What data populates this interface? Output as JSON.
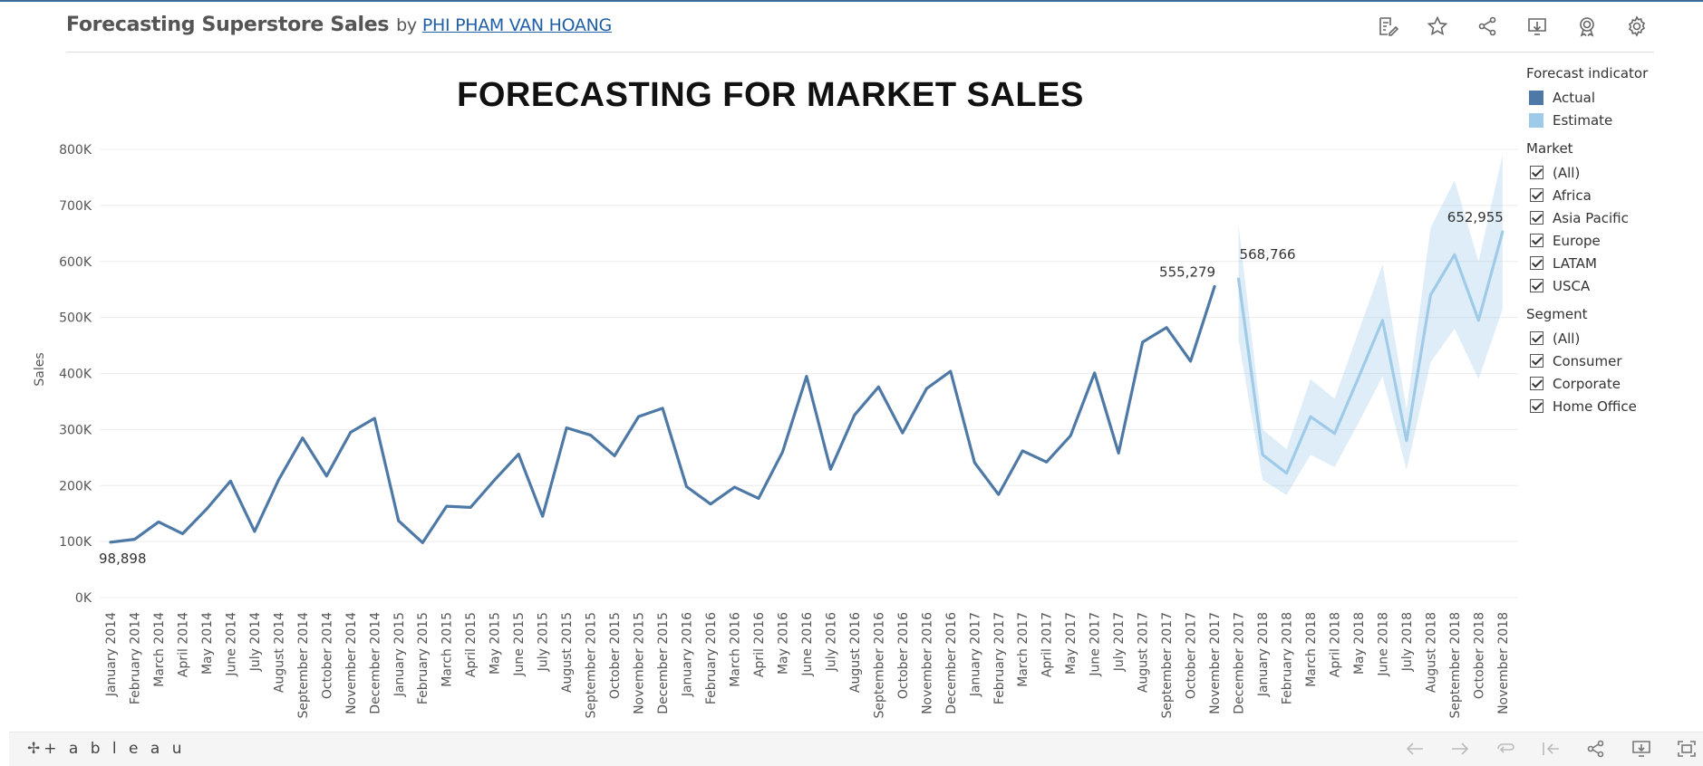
{
  "header": {
    "title": "Forecasting Superstore Sales",
    "by": "by",
    "author": "PHI PHAM VAN HOANG",
    "icons": [
      "edit-icon",
      "star-icon",
      "share-icon",
      "download-icon",
      "badge-icon",
      "settings-icon"
    ]
  },
  "chart_data": {
    "type": "line",
    "title": "FORECASTING FOR MARKET SALES",
    "ylabel": "Sales",
    "xlabel": "",
    "ylim": [
      0,
      800000
    ],
    "y_ticks": [
      "0K",
      "100K",
      "200K",
      "300K",
      "400K",
      "500K",
      "600K",
      "700K",
      "800K"
    ],
    "y_tick_values": [
      0,
      100000,
      200000,
      300000,
      400000,
      500000,
      600000,
      700000,
      800000
    ],
    "grid": true,
    "categories": [
      "January 2014",
      "February 2014",
      "March 2014",
      "April 2014",
      "May 2014",
      "June 2014",
      "July 2014",
      "August 2014",
      "September 2014",
      "October 2014",
      "November 2014",
      "December 2014",
      "January 2015",
      "February 2015",
      "March 2015",
      "April 2015",
      "May 2015",
      "June 2015",
      "July 2015",
      "August 2015",
      "September 2015",
      "October 2015",
      "November 2015",
      "December 2015",
      "January 2016",
      "February 2016",
      "March 2016",
      "April 2016",
      "May 2016",
      "June 2016",
      "July 2016",
      "August 2016",
      "September 2016",
      "October 2016",
      "November 2016",
      "December 2016",
      "January 2017",
      "February 2017",
      "March 2017",
      "April 2017",
      "May 2017",
      "June 2017",
      "July 2017",
      "August 2017",
      "September 2017",
      "October 2017",
      "November 2017",
      "December 2017",
      "January 2018",
      "February 2018",
      "March 2018",
      "April 2018",
      "May 2018",
      "June 2018",
      "July 2018",
      "August 2018",
      "September 2018",
      "October 2018",
      "November 2018"
    ],
    "series": [
      {
        "name": "Actual",
        "color": "#4e79a7",
        "values": [
          98898,
          104000,
          135000,
          114000,
          158000,
          208000,
          118000,
          210000,
          285000,
          217000,
          295000,
          320000,
          137000,
          98000,
          163000,
          161000,
          210000,
          256000,
          145000,
          303000,
          290000,
          253000,
          323000,
          338000,
          198000,
          167000,
          197000,
          177000,
          260000,
          395000,
          229000,
          326000,
          376000,
          294000,
          373000,
          404000,
          241000,
          184000,
          262000,
          242000,
          289000,
          401000,
          258000,
          456000,
          482000,
          422000,
          555279,
          null,
          null,
          null,
          null,
          null,
          null,
          null,
          null,
          null,
          null,
          null,
          null
        ]
      },
      {
        "name": "Estimate",
        "color": "#a0cbe8",
        "values": [
          null,
          null,
          null,
          null,
          null,
          null,
          null,
          null,
          null,
          null,
          null,
          null,
          null,
          null,
          null,
          null,
          null,
          null,
          null,
          null,
          null,
          null,
          null,
          null,
          null,
          null,
          null,
          null,
          null,
          null,
          null,
          null,
          null,
          null,
          null,
          null,
          null,
          null,
          null,
          null,
          null,
          null,
          null,
          null,
          null,
          null,
          null,
          568766,
          255000,
          222000,
          323000,
          293000,
          393000,
          495000,
          280000,
          540000,
          612000,
          495000,
          652955
        ],
        "lower": [
          null,
          null,
          null,
          null,
          null,
          null,
          null,
          null,
          null,
          null,
          null,
          null,
          null,
          null,
          null,
          null,
          null,
          null,
          null,
          null,
          null,
          null,
          null,
          null,
          null,
          null,
          null,
          null,
          null,
          null,
          null,
          null,
          null,
          null,
          null,
          null,
          null,
          null,
          null,
          null,
          null,
          null,
          null,
          null,
          null,
          null,
          null,
          460000,
          210000,
          183000,
          255000,
          233000,
          312000,
          395000,
          228000,
          420000,
          480000,
          390000,
          515000
        ],
        "upper": [
          null,
          null,
          null,
          null,
          null,
          null,
          null,
          null,
          null,
          null,
          null,
          null,
          null,
          null,
          null,
          null,
          null,
          null,
          null,
          null,
          null,
          null,
          null,
          null,
          null,
          null,
          null,
          null,
          null,
          null,
          null,
          null,
          null,
          null,
          null,
          null,
          null,
          null,
          null,
          null,
          null,
          null,
          null,
          null,
          null,
          null,
          null,
          665000,
          300000,
          265000,
          390000,
          355000,
          475000,
          595000,
          335000,
          660000,
          745000,
          600000,
          790000
        ]
      }
    ],
    "data_labels": [
      {
        "index": 0,
        "text": "98,898",
        "placement": "below"
      },
      {
        "index": 46,
        "text": "555,279",
        "placement": "above-left"
      },
      {
        "index": 47,
        "text": "568,766",
        "placement": "right"
      },
      {
        "index": 58,
        "text": "652,955",
        "placement": "above-left"
      }
    ]
  },
  "legend": {
    "forecast_title": "Forecast indicator",
    "forecast_items": [
      {
        "label": "Actual",
        "color": "#4e79a7"
      },
      {
        "label": "Estimate",
        "color": "#a0cbe8"
      }
    ],
    "market_title": "Market",
    "market_items": [
      "(All)",
      "Africa",
      "Asia Pacific",
      "Europe",
      "LATAM",
      "USCA"
    ],
    "segment_title": "Segment",
    "segment_items": [
      "(All)",
      "Consumer",
      "Corporate",
      "Home Office"
    ]
  },
  "footer": {
    "logo_text": "+ a b l e a u",
    "icons": [
      "undo-icon",
      "redo-icon",
      "revert-icon",
      "pause-icon",
      "share-icon",
      "download-icon",
      "fullscreen-icon"
    ]
  }
}
